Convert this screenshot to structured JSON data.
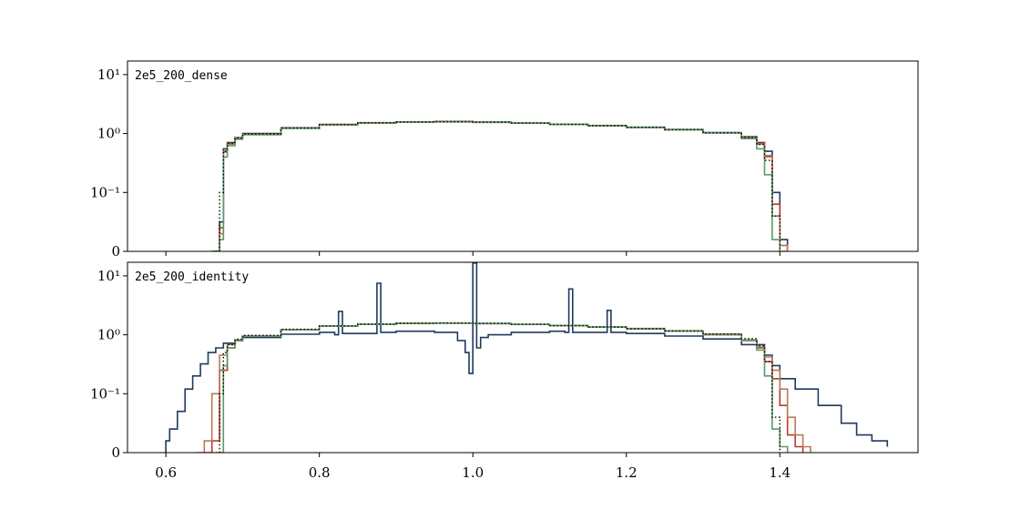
{
  "chart_data": [
    {
      "type": "line",
      "panel_label": "2e5_200_dense",
      "title": "",
      "xlabel": "",
      "ylabel": "",
      "xlim": [
        0.55,
        1.58
      ],
      "yscale": "symlog",
      "ylim": [
        0,
        17
      ],
      "y_ticks": [
        {
          "value": 0,
          "label": "0"
        },
        {
          "value": 0.1,
          "label": "10⁻¹"
        },
        {
          "value": 1,
          "label": "10⁰"
        },
        {
          "value": 10,
          "label": "10¹"
        }
      ],
      "x_ticks": [
        {
          "value": 0.6,
          "label": ""
        },
        {
          "value": 0.8,
          "label": ""
        },
        {
          "value": 1.0,
          "label": ""
        },
        {
          "value": 1.2,
          "label": ""
        },
        {
          "value": 1.4,
          "label": ""
        }
      ],
      "grid": false,
      "legend": "none",
      "series": [
        {
          "color": "#1f3a5f",
          "style": "step",
          "x": [
            0.66,
            0.67,
            0.675,
            0.68,
            0.69,
            0.7,
            0.75,
            0.8,
            0.85,
            0.9,
            0.95,
            1.0,
            1.05,
            1.1,
            1.15,
            1.2,
            1.25,
            1.3,
            1.35,
            1.37,
            1.38,
            1.39,
            1.4,
            1.41
          ],
          "y": [
            0,
            0.05,
            0.55,
            0.7,
            0.85,
            1.0,
            1.25,
            1.42,
            1.52,
            1.58,
            1.6,
            1.56,
            1.5,
            1.44,
            1.36,
            1.28,
            1.17,
            1.04,
            0.88,
            0.7,
            0.5,
            0.1,
            0.02,
            0
          ]
        },
        {
          "color": "#b83a2a",
          "style": "step",
          "x": [
            0.66,
            0.67,
            0.675,
            0.68,
            0.69,
            0.7,
            0.75,
            0.8,
            0.85,
            0.9,
            0.95,
            1.0,
            1.05,
            1.1,
            1.15,
            1.2,
            1.25,
            1.3,
            1.35,
            1.37,
            1.38,
            1.39,
            1.4,
            1.41
          ],
          "y": [
            0,
            0.04,
            0.5,
            0.68,
            0.84,
            0.98,
            1.24,
            1.43,
            1.53,
            1.57,
            1.59,
            1.55,
            1.51,
            1.43,
            1.37,
            1.27,
            1.16,
            1.03,
            0.86,
            0.68,
            0.42,
            0.08,
            0.01,
            0
          ]
        },
        {
          "color": "#b87a5a",
          "style": "step",
          "x": [
            0.66,
            0.67,
            0.675,
            0.68,
            0.69,
            0.7,
            0.75,
            0.8,
            0.85,
            0.9,
            0.95,
            1.0,
            1.05,
            1.1,
            1.15,
            1.2,
            1.25,
            1.3,
            1.35,
            1.37,
            1.38,
            1.39,
            1.4,
            1.41
          ],
          "y": [
            0,
            0.03,
            0.48,
            0.66,
            0.83,
            0.97,
            1.23,
            1.41,
            1.51,
            1.57,
            1.58,
            1.55,
            1.5,
            1.43,
            1.35,
            1.27,
            1.16,
            1.02,
            0.85,
            0.66,
            0.4,
            0.06,
            0.01,
            0
          ]
        },
        {
          "color": "#5a9a6a",
          "style": "step",
          "x": [
            0.66,
            0.67,
            0.675,
            0.68,
            0.69,
            0.7,
            0.75,
            0.8,
            0.85,
            0.9,
            0.95,
            1.0,
            1.05,
            1.1,
            1.15,
            1.2,
            1.25,
            1.3,
            1.35,
            1.37,
            1.38,
            1.39,
            1.4,
            1.41
          ],
          "y": [
            0,
            0.02,
            0.4,
            0.62,
            0.8,
            0.95,
            1.22,
            1.4,
            1.5,
            1.56,
            1.58,
            1.56,
            1.5,
            1.44,
            1.35,
            1.28,
            1.17,
            1.03,
            0.82,
            0.55,
            0.2,
            0.02,
            0,
            0
          ]
        },
        {
          "color": "#000000",
          "style": "dotted",
          "x": [
            0.665,
            0.67,
            0.675,
            0.68,
            0.69,
            0.7,
            0.75,
            0.8,
            0.85,
            0.9,
            0.95,
            1.0,
            1.05,
            1.1,
            1.15,
            1.2,
            1.25,
            1.3,
            1.35,
            1.37,
            1.38,
            1.39,
            1.4
          ],
          "y": [
            0,
            0.1,
            0.5,
            0.68,
            0.84,
            0.98,
            1.24,
            1.42,
            1.52,
            1.57,
            1.59,
            1.56,
            1.5,
            1.43,
            1.36,
            1.27,
            1.16,
            1.03,
            0.86,
            0.65,
            0.35,
            0.06,
            0
          ]
        }
      ]
    },
    {
      "type": "line",
      "panel_label": "2e5_200_identity",
      "title": "",
      "xlabel": "",
      "ylabel": "",
      "xlim": [
        0.55,
        1.58
      ],
      "yscale": "symlog",
      "ylim": [
        0,
        17
      ],
      "y_ticks": [
        {
          "value": 0,
          "label": "0"
        },
        {
          "value": 0.1,
          "label": "10⁻¹"
        },
        {
          "value": 1,
          "label": "10⁰"
        },
        {
          "value": 10,
          "label": "10¹"
        }
      ],
      "x_ticks": [
        {
          "value": 0.6,
          "label": "0.6"
        },
        {
          "value": 0.8,
          "label": "0.8"
        },
        {
          "value": 1.0,
          "label": "1.0"
        },
        {
          "value": 1.2,
          "label": "1.2"
        },
        {
          "value": 1.4,
          "label": "1.4"
        }
      ],
      "grid": false,
      "legend": "none",
      "series": [
        {
          "color": "#1f3a5f",
          "style": "step",
          "x": [
            0.6,
            0.605,
            0.615,
            0.625,
            0.635,
            0.645,
            0.655,
            0.665,
            0.675,
            0.69,
            0.7,
            0.75,
            0.8,
            0.82,
            0.825,
            0.83,
            0.87,
            0.875,
            0.88,
            0.9,
            0.95,
            0.98,
            0.99,
            0.995,
            1.0,
            1.005,
            1.01,
            1.02,
            1.05,
            1.1,
            1.12,
            1.125,
            1.13,
            1.17,
            1.175,
            1.18,
            1.2,
            1.25,
            1.3,
            1.35,
            1.38,
            1.39,
            1.4,
            1.42,
            1.45,
            1.48,
            1.5,
            1.52,
            1.54
          ],
          "y": [
            0.02,
            0.04,
            0.07,
            0.12,
            0.2,
            0.32,
            0.5,
            0.6,
            0.72,
            0.8,
            0.9,
            1.02,
            1.1,
            1.0,
            2.5,
            1.05,
            1.05,
            7.5,
            1.1,
            1.15,
            1.1,
            0.8,
            0.5,
            0.22,
            16.5,
            0.6,
            0.9,
            1.0,
            1.1,
            1.15,
            1.1,
            6.0,
            1.1,
            1.1,
            2.6,
            1.1,
            1.05,
            0.95,
            0.85,
            0.68,
            0.45,
            0.3,
            0.18,
            0.12,
            0.08,
            0.05,
            0.03,
            0.02,
            0.01
          ]
        },
        {
          "color": "#b83a2a",
          "style": "step",
          "x": [
            0.65,
            0.66,
            0.67,
            0.68,
            0.69,
            0.7,
            0.75,
            0.8,
            0.85,
            0.9,
            0.95,
            1.0,
            1.05,
            1.1,
            1.15,
            1.2,
            1.25,
            1.3,
            1.35,
            1.37,
            1.38,
            1.39,
            1.4,
            1.41,
            1.42,
            1.43
          ],
          "y": [
            0,
            0.02,
            0.25,
            0.6,
            0.8,
            0.95,
            1.22,
            1.4,
            1.5,
            1.56,
            1.58,
            1.55,
            1.5,
            1.43,
            1.35,
            1.26,
            1.15,
            1.0,
            0.8,
            0.6,
            0.35,
            0.18,
            0.08,
            0.03,
            0.01,
            0
          ]
        },
        {
          "color": "#b87a5a",
          "style": "step",
          "x": [
            0.64,
            0.65,
            0.66,
            0.67,
            0.68,
            0.69,
            0.7,
            0.75,
            0.8,
            0.85,
            0.9,
            0.95,
            1.0,
            1.05,
            1.1,
            1.15,
            1.2,
            1.25,
            1.3,
            1.35,
            1.37,
            1.38,
            1.39,
            1.4,
            1.41,
            1.42,
            1.43,
            1.44
          ],
          "y": [
            0,
            0.02,
            0.1,
            0.45,
            0.68,
            0.82,
            0.95,
            1.22,
            1.4,
            1.5,
            1.56,
            1.58,
            1.55,
            1.5,
            1.43,
            1.35,
            1.26,
            1.15,
            1.0,
            0.8,
            0.62,
            0.42,
            0.25,
            0.12,
            0.06,
            0.03,
            0.01,
            0
          ]
        },
        {
          "color": "#5a9a6a",
          "style": "step",
          "x": [
            0.67,
            0.675,
            0.68,
            0.69,
            0.7,
            0.75,
            0.8,
            0.85,
            0.9,
            0.95,
            1.0,
            1.05,
            1.1,
            1.15,
            1.2,
            1.25,
            1.3,
            1.35,
            1.37,
            1.38,
            1.39,
            1.4,
            1.41
          ],
          "y": [
            0,
            0.3,
            0.6,
            0.8,
            0.95,
            1.22,
            1.4,
            1.5,
            1.56,
            1.58,
            1.56,
            1.5,
            1.44,
            1.35,
            1.28,
            1.17,
            1.03,
            0.82,
            0.55,
            0.2,
            0.04,
            0.01,
            0
          ]
        },
        {
          "color": "#000000",
          "style": "dotted",
          "x": [
            0.665,
            0.67,
            0.675,
            0.68,
            0.69,
            0.7,
            0.75,
            0.8,
            0.85,
            0.9,
            0.95,
            1.0,
            1.05,
            1.1,
            1.15,
            1.2,
            1.25,
            1.3,
            1.35,
            1.37,
            1.38,
            1.39,
            1.4
          ],
          "y": [
            0,
            0.1,
            0.5,
            0.68,
            0.84,
            0.98,
            1.24,
            1.42,
            1.52,
            1.57,
            1.59,
            1.56,
            1.5,
            1.43,
            1.36,
            1.27,
            1.16,
            1.03,
            0.86,
            0.65,
            0.35,
            0.06,
            0
          ]
        }
      ]
    }
  ]
}
